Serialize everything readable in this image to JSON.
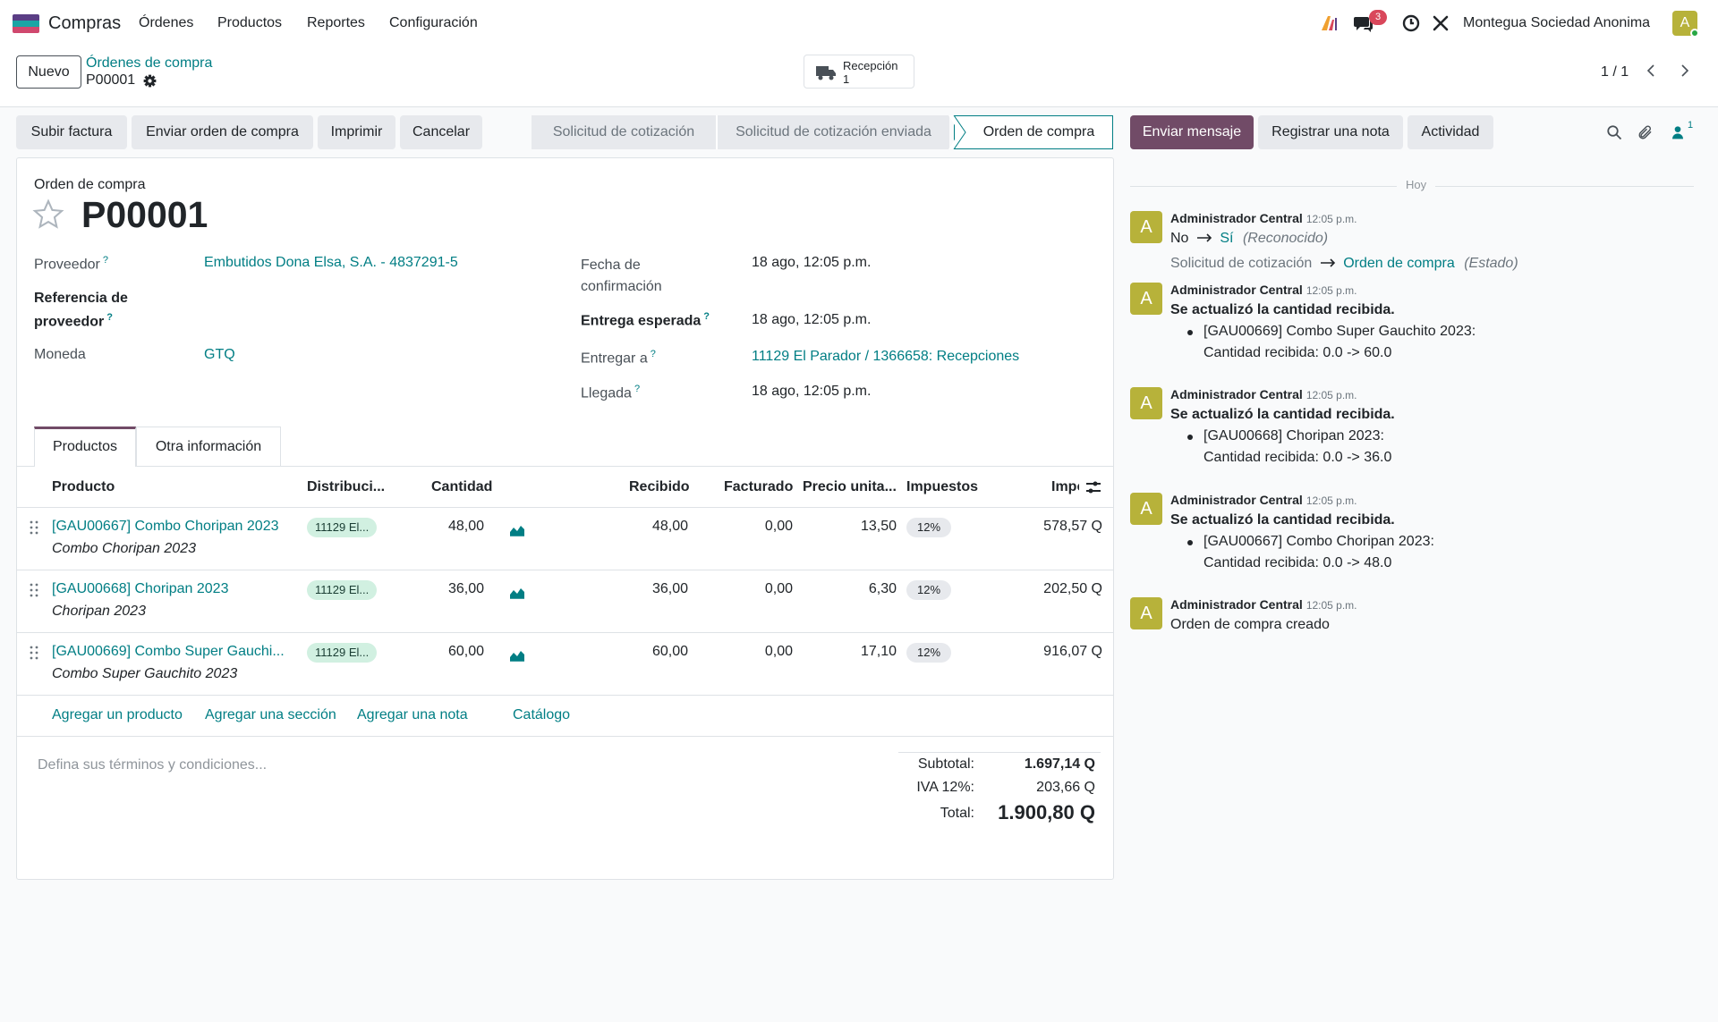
{
  "navbar": {
    "app_name": "Compras",
    "menu": [
      "Órdenes",
      "Productos",
      "Reportes",
      "Configuración"
    ],
    "message_count": "3",
    "company": "Montegua Sociedad Anonima",
    "user_initial": "A"
  },
  "control": {
    "new_label": "Nuevo",
    "breadcrumb_parent": "Órdenes de compra",
    "breadcrumb_current": "P00001",
    "smart_button_label": "Recepción",
    "smart_button_count": "1",
    "pager": "1 / 1"
  },
  "actions": [
    "Subir factura",
    "Enviar orden de compra",
    "Imprimir",
    "Cancelar"
  ],
  "stages": [
    "Solicitud de cotización",
    "Solicitud de cotización enviada",
    "Orden de compra"
  ],
  "chatter_buttons": {
    "send": "Enviar mensaje",
    "note": "Registrar una nota",
    "activity": "Actividad",
    "follower_count": "1"
  },
  "form": {
    "doc_type": "Orden de compra",
    "name": "P00001",
    "vendor_label": "Proveedor",
    "vendor_value": "Embutidos Dona Elsa, S.A. - 4837291-5",
    "ref_label_1": "Referencia de",
    "ref_label_2": "proveedor",
    "currency_label": "Moneda",
    "currency_value": "GTQ",
    "confirm_label_1": "Fecha de",
    "confirm_label_2": "confirmación",
    "confirm_value": "18 ago, 12:05 p.m.",
    "expected_label": "Entrega esperada",
    "expected_value": "18 ago, 12:05 p.m.",
    "deliver_label": "Entregar a",
    "deliver_value": "11129 El Parador / 1366658: Recepciones",
    "arrival_label": "Llegada",
    "arrival_value": "18 ago, 12:05 p.m.",
    "help_mark": "?"
  },
  "tabs": [
    "Productos",
    "Otra información"
  ],
  "table": {
    "headers": [
      "Producto",
      "Distribuci...",
      "Cantidad",
      "Recibido",
      "Facturado",
      "Precio unita...",
      "Impuestos",
      "Impo"
    ],
    "rows": [
      {
        "product": "[GAU00667] Combo Choripan 2023",
        "desc": "Combo Choripan 2023",
        "dist": "11129 El...",
        "qty": "48,00",
        "received": "48,00",
        "invoiced": "0,00",
        "price": "13,50",
        "tax": "12%",
        "amount": "578,57 Q"
      },
      {
        "product": "[GAU00668] Choripan 2023",
        "desc": "Choripan 2023",
        "dist": "11129 El...",
        "qty": "36,00",
        "received": "36,00",
        "invoiced": "0,00",
        "price": "6,30",
        "tax": "12%",
        "amount": "202,50 Q"
      },
      {
        "product": "[GAU00669] Combo Super Gauchi...",
        "desc": "Combo Super Gauchito 2023",
        "dist": "11129 El...",
        "qty": "60,00",
        "received": "60,00",
        "invoiced": "0,00",
        "price": "17,10",
        "tax": "12%",
        "amount": "916,07 Q"
      }
    ],
    "add_links": [
      "Agregar un producto",
      "Agregar una sección",
      "Agregar una nota",
      "Catálogo"
    ]
  },
  "terms_placeholder": "Defina sus términos y condiciones...",
  "totals": {
    "subtotal_label": "Subtotal:",
    "subtotal_value": "1.697,14 Q",
    "tax_label": "IVA 12%:",
    "tax_value": "203,66 Q",
    "total_label": "Total:",
    "total_value": "1.900,80 Q"
  },
  "chatter": {
    "separator": "Hoy",
    "author": "Administrador Central",
    "time": "12:05 p.m.",
    "msg1": {
      "old": "No",
      "new": "Sí",
      "field": "(Reconocido)",
      "old2": "Solicitud de cotización",
      "new2": "Orden de compra",
      "field2": "(Estado)"
    },
    "update_title": "Se actualizó la cantidad recibida.",
    "msg2": {
      "product": "[GAU00669] Combo Super Gauchito 2023:",
      "detail": "Cantidad recibida: 0.0 -> 60.0"
    },
    "msg3": {
      "product": "[GAU00668] Choripan 2023:",
      "detail": "Cantidad recibida: 0.0 -> 36.0"
    },
    "msg4": {
      "product": "[GAU00667] Combo Choripan 2023:",
      "detail": "Cantidad recibida: 0.0 -> 48.0"
    },
    "msg5": "Orden de compra creado"
  },
  "colors": {
    "primary": "#714b67",
    "link": "#017e84",
    "avatar": "#b7b23a",
    "badge": "#d9475b"
  }
}
